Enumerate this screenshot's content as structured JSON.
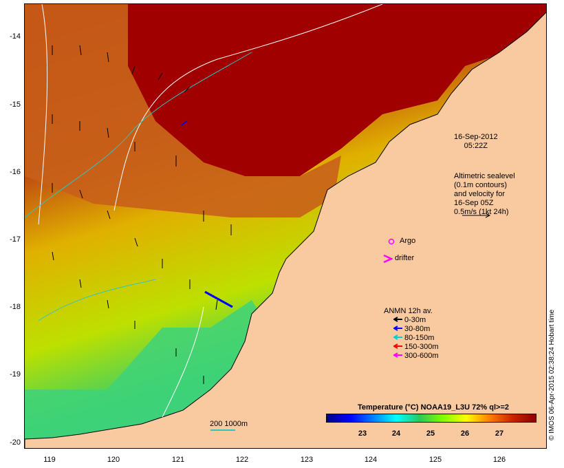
{
  "date": {
    "day": "16-Sep-2012",
    "time": "05:22Z"
  },
  "altimetry_note": [
    "Altimetric sealevel",
    "(0.1m contours)",
    "and velocity for",
    "16-Sep 05Z",
    "0.5m/s (1kt 24h)"
  ],
  "markers": {
    "argo": "Argo",
    "drifter": "drifter"
  },
  "legend": {
    "title": "ANMN 12h av.",
    "items": [
      {
        "label": "0-30m",
        "color": "#000000"
      },
      {
        "label": "30-80m",
        "color": "#0000ff"
      },
      {
        "label": "80-150m",
        "color": "#00d0d0"
      },
      {
        "label": "150-300m",
        "color": "#ff0000"
      },
      {
        "label": "300-600m",
        "color": "#ff00ff"
      }
    ]
  },
  "colorbar": {
    "title": "Temperature (°C) NOAA19_L3U 72% ql>=2",
    "ticks": [
      "23",
      "24",
      "25",
      "26",
      "27"
    ],
    "colors": [
      "#00007f",
      "#0000ff",
      "#0080ff",
      "#00ffff",
      "#2ec65a",
      "#7fff00",
      "#ffff00",
      "#ff8000",
      "#cc2200",
      "#8b0000"
    ]
  },
  "scale_label": "200  1000m",
  "y_ticks": [
    "-14",
    "-15",
    "-16",
    "-17",
    "-18",
    "-19",
    "-20"
  ],
  "x_ticks": [
    "119",
    "120",
    "121",
    "122",
    "123",
    "124",
    "125",
    "126"
  ],
  "credit": "© IMOS 06-Apr-2015 02:38:24 Hobart time"
}
